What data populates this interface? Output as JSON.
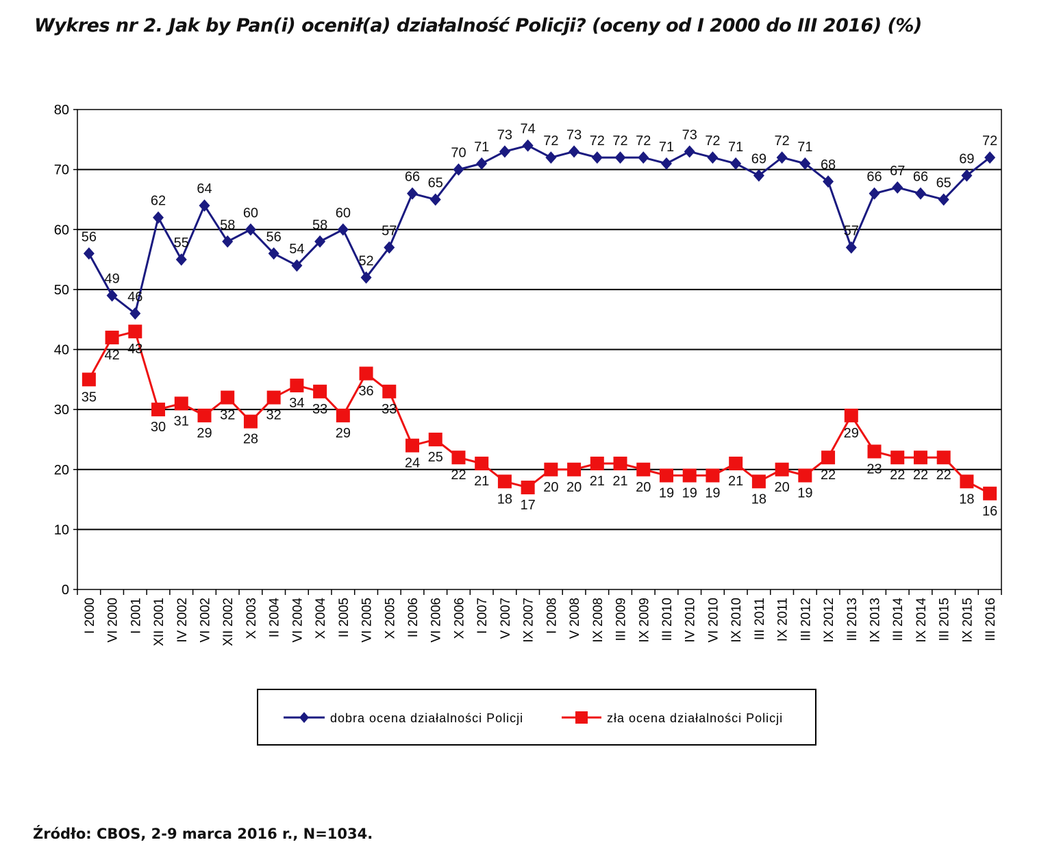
{
  "chart_data": {
    "type": "line",
    "title": "Wykres nr 2. Jak by Pan(i) ocenił(a) działalność Policji? (oceny od I 2000 do III 2016) (%)",
    "source": "Źródło: CBOS, 2-9 marca 2016 r., N=1034.",
    "xlabel": "",
    "ylabel": "",
    "ylim": [
      0,
      80
    ],
    "yticks": [
      0,
      10,
      20,
      30,
      40,
      50,
      60,
      70,
      80
    ],
    "grid": true,
    "legend_position": "bottom",
    "categories": [
      "I 2000",
      "VI 2000",
      "I 2001",
      "XII 2001",
      "IV 2002",
      "VI 2002",
      "XII 2002",
      "X 2003",
      "II 2004",
      "VI 2004",
      "X 2004",
      "II 2005",
      "VI 2005",
      "X 2005",
      "II 2006",
      "VI 2006",
      "X 2006",
      "I 2007",
      "V 2007",
      "IX 2007",
      "I 2008",
      "V 2008",
      "IX 2008",
      "III 2009",
      "IX 2009",
      "III 2010",
      "IV 2010",
      "VI 2010",
      "IX 2010",
      "III 2011",
      "IX 2011",
      "III 2012",
      "IX 2012",
      "III 2013",
      "IX 2013",
      "III 2014",
      "IX 2014",
      "III 2015",
      "IX 2015",
      "III 2016"
    ],
    "series": [
      {
        "name": "dobra ocena działalności Policji",
        "color": "#1a1a80",
        "marker": "diamond",
        "values": [
          56,
          49,
          46,
          62,
          55,
          64,
          58,
          60,
          56,
          54,
          58,
          60,
          52,
          57,
          66,
          65,
          70,
          71,
          73,
          74,
          72,
          73,
          72,
          72,
          72,
          71,
          73,
          72,
          71,
          69,
          72,
          71,
          68,
          57,
          66,
          67,
          66,
          65,
          69,
          72
        ]
      },
      {
        "name": "zła ocena działalności Policji",
        "color": "#ee1111",
        "marker": "square",
        "values": [
          35,
          42,
          43,
          30,
          31,
          29,
          32,
          28,
          32,
          34,
          33,
          29,
          36,
          33,
          24,
          25,
          22,
          21,
          18,
          17,
          20,
          20,
          21,
          21,
          20,
          19,
          19,
          19,
          21,
          18,
          20,
          19,
          22,
          29,
          23,
          22,
          22,
          22,
          18,
          16
        ]
      }
    ]
  }
}
